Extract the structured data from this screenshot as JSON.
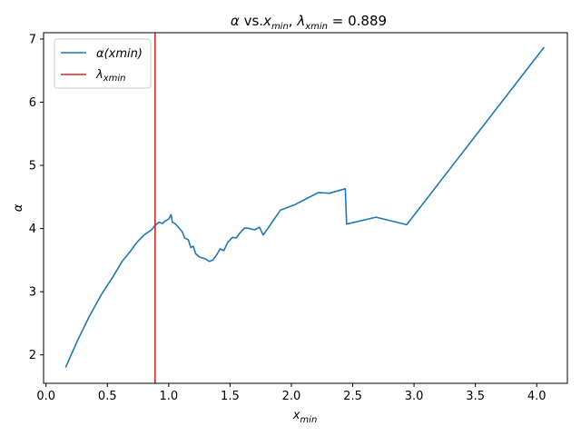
{
  "chart_data": {
    "type": "line",
    "title": {
      "prefix": "α",
      "mid": " vs.",
      "x": "x",
      "x_sub": "min",
      "sep": ", ",
      "lam": "λ",
      "lam_sub": "xmin",
      "value": " = 0.889"
    },
    "xlabel": {
      "base": "x",
      "sub": "min"
    },
    "ylabel": "α",
    "xlim": [
      -0.02,
      4.25
    ],
    "ylim": [
      1.55,
      7.1
    ],
    "xticks": [
      0.0,
      0.5,
      1.0,
      1.5,
      2.0,
      2.5,
      3.0,
      3.5,
      4.0
    ],
    "xtick_labels": [
      "0.0",
      "0.5",
      "1.0",
      "1.5",
      "2.0",
      "2.5",
      "3.0",
      "3.5",
      "4.0"
    ],
    "yticks": [
      2,
      3,
      4,
      5,
      6,
      7
    ],
    "ytick_labels": [
      "2",
      "3",
      "4",
      "5",
      "6",
      "7"
    ],
    "grid": false,
    "legend_position": "top-left",
    "series": [
      {
        "name": "α(xmin)",
        "color": "#1f77b4",
        "x": [
          0.16,
          0.25,
          0.35,
          0.45,
          0.55,
          0.62,
          0.68,
          0.74,
          0.8,
          0.86,
          0.89,
          0.92,
          0.95,
          0.97,
          1.0,
          1.02,
          1.03,
          1.05,
          1.08,
          1.11,
          1.13,
          1.16,
          1.18,
          1.2,
          1.22,
          1.25,
          1.28,
          1.3,
          1.33,
          1.36,
          1.39,
          1.42,
          1.45,
          1.48,
          1.52,
          1.55,
          1.58,
          1.62,
          1.66,
          1.7,
          1.74,
          1.77,
          1.79,
          1.91,
          2.03,
          2.22,
          2.31,
          2.44,
          2.45,
          2.69,
          2.94,
          4.06
        ],
        "values": [
          1.8,
          2.2,
          2.6,
          2.95,
          3.25,
          3.48,
          3.62,
          3.78,
          3.9,
          3.98,
          4.05,
          4.1,
          4.08,
          4.12,
          4.15,
          4.22,
          4.1,
          4.08,
          4.02,
          3.95,
          3.85,
          3.82,
          3.7,
          3.72,
          3.6,
          3.55,
          3.53,
          3.52,
          3.48,
          3.5,
          3.58,
          3.68,
          3.65,
          3.78,
          3.86,
          3.85,
          3.93,
          4.01,
          4.0,
          3.98,
          4.02,
          3.9,
          3.95,
          4.29,
          4.38,
          4.57,
          4.56,
          4.63,
          4.07,
          4.18,
          4.06,
          6.87
        ]
      },
      {
        "name": "λxmin",
        "label_base": "λ",
        "label_sub": "xmin",
        "color": "#d62728",
        "type": "vline",
        "x": 0.889
      }
    ]
  }
}
